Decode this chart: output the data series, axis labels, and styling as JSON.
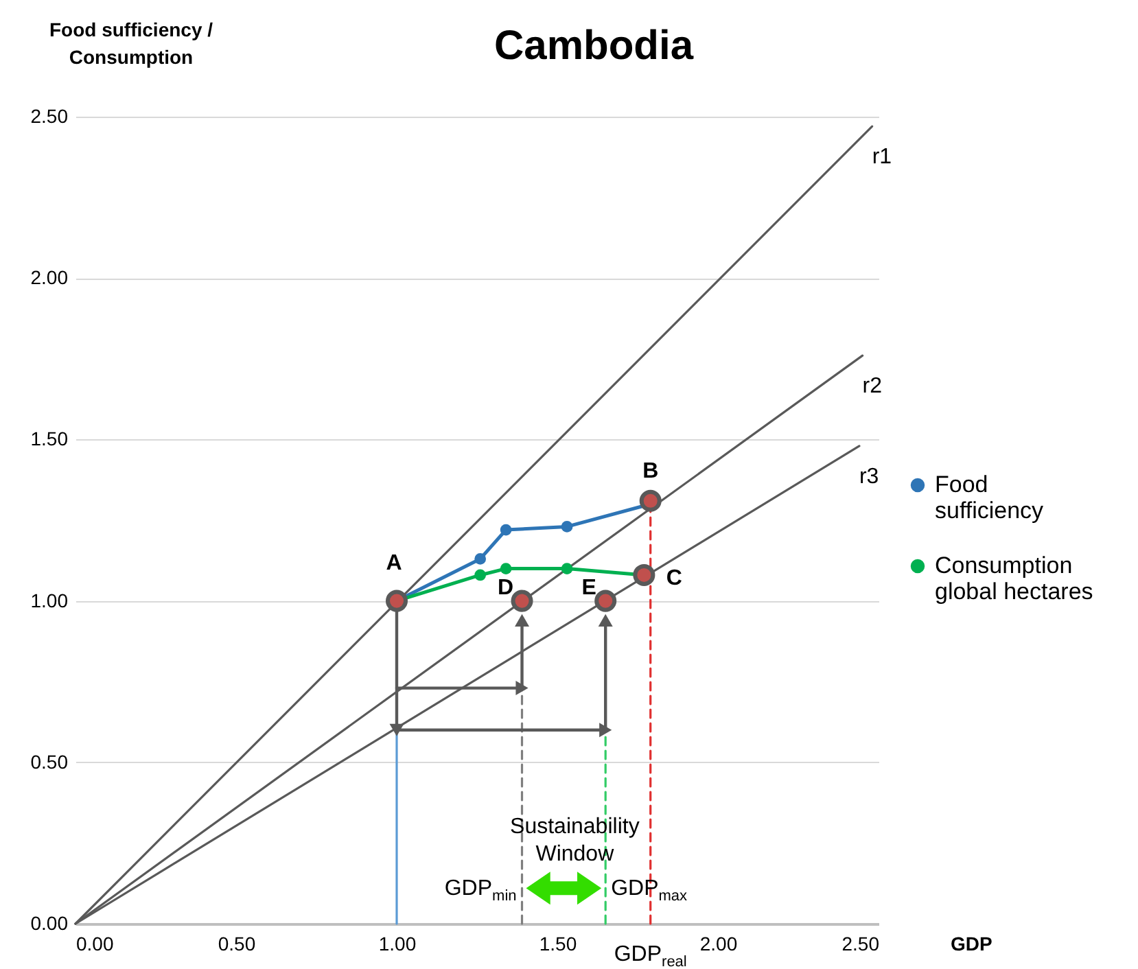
{
  "chart_data": {
    "type": "line",
    "title": "Cambodia",
    "xlabel": "GDP",
    "ylabel": "Food sufficiency / Consumption",
    "xlim": [
      0,
      2.5
    ],
    "ylim": [
      0,
      2.5
    ],
    "xticks": [
      {
        "value": 0,
        "label": "0.00"
      },
      {
        "value": 0.5,
        "label": "0.50"
      },
      {
        "value": 1,
        "label": "1.00"
      },
      {
        "value": 1.5,
        "label": "1.50"
      },
      {
        "value": 2,
        "label": "2.00"
      },
      {
        "value": 2.5,
        "label": "2.50"
      }
    ],
    "yticks": [
      {
        "value": 0,
        "label": "0.00"
      },
      {
        "value": 0.5,
        "label": "0.50"
      },
      {
        "value": 1,
        "label": "1.00"
      },
      {
        "value": 1.5,
        "label": "1.50"
      },
      {
        "value": 2,
        "label": "2.00"
      },
      {
        "value": 2.5,
        "label": "2.50"
      }
    ],
    "grid": "y",
    "legend": "right",
    "series": [
      {
        "color": "#5b9bd5",
        "line_style": "solid",
        "marker": "none",
        "x": [
          1,
          1
        ],
        "values": [
          0,
          1
        ]
      },
      {
        "color": "#7f7f7f",
        "line_style": "dashed",
        "marker": "none",
        "x": [
          1.39,
          1.39
        ],
        "values": [
          0,
          0.73
        ]
      },
      {
        "color": "#33cc66",
        "line_style": "dashed",
        "marker": "none",
        "x": [
          1.65,
          1.65
        ],
        "values": [
          0,
          0.6
        ]
      },
      {
        "color": "#e03030",
        "line_style": "dashed",
        "marker": "none",
        "x": [
          1.79,
          1.79
        ],
        "values": [
          0,
          1.31
        ]
      },
      {
        "name": "r1",
        "color": "#595959",
        "line_style": "solid",
        "marker": "none",
        "x": [
          0,
          2.48
        ],
        "values": [
          0,
          2.47
        ]
      },
      {
        "name": "r2",
        "color": "#595959",
        "line_style": "solid",
        "marker": "none",
        "x": [
          0,
          2.45
        ],
        "values": [
          0,
          1.76
        ]
      },
      {
        "name": "r3",
        "color": "#595959",
        "line_style": "solid",
        "marker": "none",
        "x": [
          0,
          2.44
        ],
        "values": [
          0,
          1.48
        ]
      },
      {
        "color": "#595959",
        "line_style": "solid",
        "marker": "triangle",
        "x": [
          1,
          1
        ],
        "values": [
          1,
          0.6
        ]
      },
      {
        "color": "#595959",
        "line_style": "solid",
        "marker": "triangle",
        "x": [
          1,
          1.39
        ],
        "values": [
          0.73,
          0.73
        ]
      },
      {
        "color": "#595959",
        "line_style": "solid",
        "marker": "triangle",
        "x": [
          1,
          1.65
        ],
        "values": [
          0.6,
          0.6
        ]
      },
      {
        "color": "#595959",
        "line_style": "solid",
        "marker": "triangle",
        "x": [
          1.39,
          1.39
        ],
        "values": [
          0.73,
          0.94
        ]
      },
      {
        "color": "#595959",
        "line_style": "solid",
        "marker": "triangle",
        "x": [
          1.65,
          1.65
        ],
        "values": [
          0.6,
          0.94
        ]
      },
      {
        "name": "Food sufficiency",
        "color": "#2e75b6",
        "line_style": "solid",
        "marker": "circle",
        "x": [
          1,
          1.26,
          1.34,
          1.53,
          1.79
        ],
        "values": [
          1,
          1.13,
          1.22,
          1.23,
          1.3
        ]
      },
      {
        "name": "Consumption global hectares",
        "color": "#00b050",
        "line_style": "solid",
        "marker": "circle",
        "x": [
          1,
          1.26,
          1.34,
          1.53,
          1.77
        ],
        "values": [
          1,
          1.08,
          1.1,
          1.1,
          1.08
        ]
      },
      {
        "type": "scatter",
        "color": "#c0504d",
        "marker": "circle",
        "x": [
          1,
          1.79,
          1.77,
          1.39,
          1.65
        ],
        "values": [
          1,
          1.31,
          1.08,
          1,
          1
        ]
      }
    ],
    "annotations": [
      {
        "text": "A",
        "x": 1,
        "y": 1
      },
      {
        "text": "B",
        "x": 1.79,
        "y": 1.31
      },
      {
        "text": "C",
        "x": 1.77,
        "y": 1.08
      },
      {
        "text": "D",
        "x": 1.39,
        "y": 1
      },
      {
        "text": "E",
        "x": 1.65,
        "y": 1
      },
      "Sustainability Window",
      {
        "text": "GDP$_{min}$",
        "x": 1.39,
        "y": 0.11
      },
      {
        "text": "GDP$_{max}$",
        "x": 1.65,
        "y": 0.11
      },
      {
        "text": "GDP$_{real}$",
        "x": 1.79,
        "y": 0
      }
    ]
  }
}
